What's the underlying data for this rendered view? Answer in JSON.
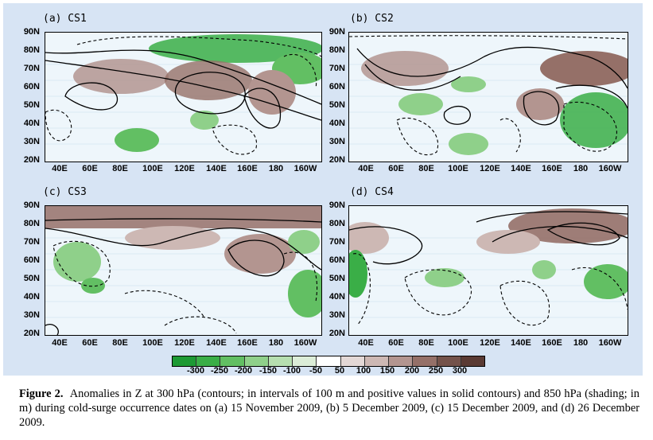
{
  "figure": {
    "panels": [
      {
        "label": "(a) CS1"
      },
      {
        "label": "(b) CS2"
      },
      {
        "label": "(c) CS3"
      },
      {
        "label": "(d) CS4"
      }
    ],
    "lat_ticks": [
      "90N",
      "80N",
      "70N",
      "60N",
      "50N",
      "40N",
      "30N",
      "20N"
    ],
    "lon_ticks": [
      "40E",
      "60E",
      "80E",
      "100E",
      "120E",
      "140E",
      "160E",
      "180",
      "160W"
    ],
    "colorbar": {
      "labels": [
        "-300",
        "-250",
        "-200",
        "-150",
        "-100",
        "-50",
        "50",
        "100",
        "150",
        "200",
        "250",
        "300"
      ],
      "colors": [
        "#1d9a34",
        "#3aae47",
        "#62bf63",
        "#8fd08a",
        "#b6dfb0",
        "#dcedd8",
        "#ffffff",
        "#e3d8d6",
        "#cdb8b4",
        "#b39590",
        "#957068",
        "#74524a",
        "#5a3a33"
      ]
    },
    "colors": {
      "panel_background": "#d7e4f4",
      "map_background": "#eef6fb",
      "positive_shading": "#9e7a72",
      "negative_shading": "#6fc36f"
    }
  },
  "caption": {
    "label": "Figure 2.",
    "text": "Anomalies in Z at 300 hPa (contours; in intervals of 100 m and positive values in solid contours) and 850 hPa (shading; in m) during cold-surge occurrence dates on (a) 15 November 2009, (b) 5 December 2009, (c) 15 December 2009, and (d) 26 December 2009."
  }
}
